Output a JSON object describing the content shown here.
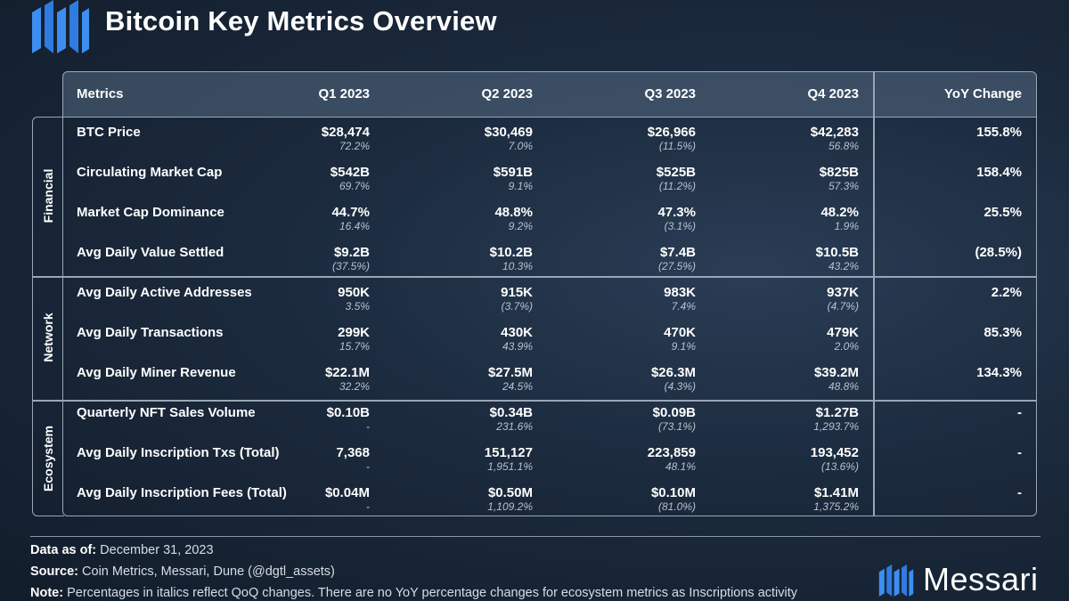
{
  "title": "Bitcoin Key Metrics Overview",
  "header": {
    "metrics": "Metrics",
    "q1": "Q1 2023",
    "q2": "Q2 2023",
    "q3": "Q3 2023",
    "q4": "Q4 2023",
    "yoy": "YoY Change"
  },
  "sections": {
    "financial": "Financial",
    "network": "Network",
    "ecosystem": "Ecosystem"
  },
  "chart_data": {
    "type": "table",
    "title": "Bitcoin Key Metrics Overview",
    "columns": [
      "Metrics",
      "Q1 2023",
      "Q2 2023",
      "Q3 2023",
      "Q4 2023",
      "YoY Change"
    ],
    "rows": [
      {
        "section": "Financial",
        "metric": "BTC Price",
        "values": [
          "$28,474",
          "$30,469",
          "$26,966",
          "$42,283"
        ],
        "qoq": [
          "72.2%",
          "7.0%",
          "(11.5%)",
          "56.8%"
        ],
        "yoy": "155.8%"
      },
      {
        "section": "Financial",
        "metric": "Circulating Market Cap",
        "values": [
          "$542B",
          "$591B",
          "$525B",
          "$825B"
        ],
        "qoq": [
          "69.7%",
          "9.1%",
          "(11.2%)",
          "57.3%"
        ],
        "yoy": "158.4%"
      },
      {
        "section": "Financial",
        "metric": "Market Cap Dominance",
        "values": [
          "44.7%",
          "48.8%",
          "47.3%",
          "48.2%"
        ],
        "qoq": [
          "16.4%",
          "9.2%",
          "(3.1%)",
          "1.9%"
        ],
        "yoy": "25.5%"
      },
      {
        "section": "Financial",
        "metric": "Avg Daily Value Settled",
        "values": [
          "$9.2B",
          "$10.2B",
          "$7.4B",
          "$10.5B"
        ],
        "qoq": [
          "(37.5%)",
          "10.3%",
          "(27.5%)",
          "43.2%"
        ],
        "yoy": "(28.5%)"
      },
      {
        "section": "Network",
        "metric": "Avg Daily Active Addresses",
        "values": [
          "950K",
          "915K",
          "983K",
          "937K"
        ],
        "qoq": [
          "3.5%",
          "(3.7%)",
          "7.4%",
          "(4.7%)"
        ],
        "yoy": "2.2%"
      },
      {
        "section": "Network",
        "metric": "Avg Daily Transactions",
        "values": [
          "299K",
          "430K",
          "470K",
          "479K"
        ],
        "qoq": [
          "15.7%",
          "43.9%",
          "9.1%",
          "2.0%"
        ],
        "yoy": "85.3%"
      },
      {
        "section": "Network",
        "metric": "Avg Daily Miner Revenue",
        "values": [
          "$22.1M",
          "$27.5M",
          "$26.3M",
          "$39.2M"
        ],
        "qoq": [
          "32.2%",
          "24.5%",
          "(4.3%)",
          "48.8%"
        ],
        "yoy": "134.3%"
      },
      {
        "section": "Ecosystem",
        "metric": "Quarterly NFT Sales Volume",
        "values": [
          "$0.10B",
          "$0.34B",
          "$0.09B",
          "$1.27B"
        ],
        "qoq": [
          "-",
          "231.6%",
          "(73.1%)",
          "1,293.7%"
        ],
        "yoy": "-"
      },
      {
        "section": "Ecosystem",
        "metric": "Avg Daily Inscription Txs (Total)",
        "values": [
          "7,368",
          "151,127",
          "223,859",
          "193,452"
        ],
        "qoq": [
          "-",
          "1,951.1%",
          "48.1%",
          "(13.6%)"
        ],
        "yoy": "-"
      },
      {
        "section": "Ecosystem",
        "metric": "Avg Daily Inscription Fees (Total)",
        "values": [
          "$0.04M",
          "$0.50M",
          "$0.10M",
          "$1.41M"
        ],
        "qoq": [
          "-",
          "1,109.2%",
          "(81.0%)",
          "1,375.2%"
        ],
        "yoy": "-"
      }
    ]
  },
  "footer": {
    "date_label": "Data as of:",
    "date_value": " December 31, 2023",
    "source_label": "Source:",
    "source_value": " Coin Metrics, Messari, Dune (@dgtl_assets)",
    "note_label": "Note:",
    "note_value": " Percentages in italics reflect QoQ changes. There are no YoY percentage changes for ecosystem metrics as Inscriptions activity"
  },
  "brand": "Messari",
  "colors": {
    "background": "#1b2a3d",
    "header_fill": "#4d6079",
    "border": "#9aa6b4",
    "logo_blue": "#3d8ef0"
  }
}
